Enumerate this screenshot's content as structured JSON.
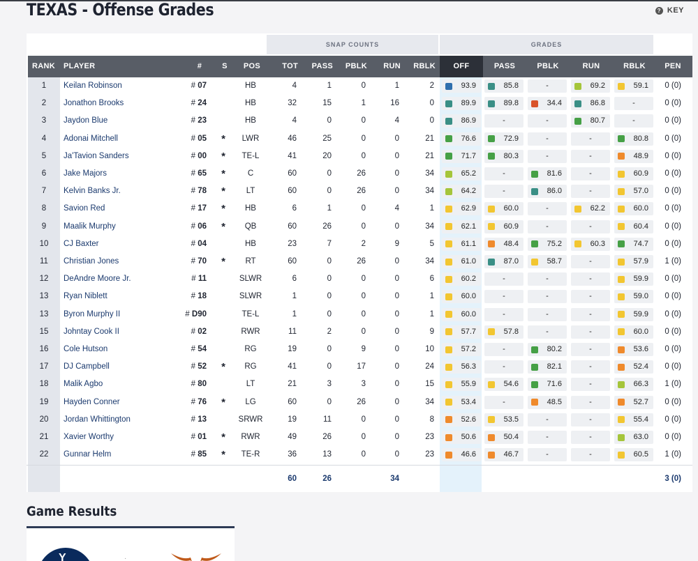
{
  "page": {
    "title": "TEXAS - Offense Grades",
    "key_label": "KEY",
    "key_icon": "question-circle-icon"
  },
  "groups": {
    "snap_counts": "SNAP COUNTS",
    "grades": "GRADES"
  },
  "headers": {
    "rank": "RANK",
    "player": "PLAYER",
    "num": "#",
    "s": "S",
    "pos": "POS",
    "tot": "TOT",
    "pass": "PASS",
    "pblk": "PBLK",
    "run": "RUN",
    "rblk": "RBLK",
    "off": "OFF",
    "g_pass": "PASS",
    "g_pblk": "PBLK",
    "g_run": "RUN",
    "g_rblk": "RBLK",
    "pen": "PEN"
  },
  "grade_colors": {
    "blue": "#2f6fad",
    "teal": "#3a8f86",
    "green": "#46a046",
    "lime": "#a5c53a",
    "yellow": "#f2c631",
    "orange": "#ef8a2c",
    "red": "#d9532a"
  },
  "rows": [
    {
      "rank": "1",
      "player": "Keilan Robinson",
      "num": "07",
      "s": "",
      "pos": "HB",
      "tot": "4",
      "pass": "1",
      "pblk": "0",
      "run": "1",
      "rblk": "2",
      "off": "93.9",
      "off_c": "blue",
      "gpass": "85.8",
      "gpass_c": "teal",
      "gpblk": "-",
      "gpblk_c": "",
      "grun": "69.2",
      "grun_c": "lime",
      "grblk": "59.1",
      "grblk_c": "yellow",
      "pen": "0 (0)"
    },
    {
      "rank": "2",
      "player": "Jonathon Brooks",
      "num": "24",
      "s": "",
      "pos": "HB",
      "tot": "32",
      "pass": "15",
      "pblk": "1",
      "run": "16",
      "rblk": "0",
      "off": "89.9",
      "off_c": "teal",
      "gpass": "89.8",
      "gpass_c": "teal",
      "gpblk": "34.4",
      "gpblk_c": "red",
      "grun": "86.8",
      "grun_c": "teal",
      "grblk": "-",
      "grblk_c": "",
      "pen": "0 (0)"
    },
    {
      "rank": "3",
      "player": "Jaydon Blue",
      "num": "23",
      "s": "",
      "pos": "HB",
      "tot": "4",
      "pass": "0",
      "pblk": "0",
      "run": "4",
      "rblk": "0",
      "off": "86.9",
      "off_c": "teal",
      "gpass": "-",
      "gpass_c": "",
      "gpblk": "-",
      "gpblk_c": "",
      "grun": "80.7",
      "grun_c": "green",
      "grblk": "-",
      "grblk_c": "",
      "pen": "0 (0)"
    },
    {
      "rank": "4",
      "player": "Adonai Mitchell",
      "num": "05",
      "s": "*",
      "pos": "LWR",
      "tot": "46",
      "pass": "25",
      "pblk": "0",
      "run": "0",
      "rblk": "21",
      "off": "76.6",
      "off_c": "green",
      "gpass": "72.9",
      "gpass_c": "green",
      "gpblk": "-",
      "gpblk_c": "",
      "grun": "-",
      "grun_c": "",
      "grblk": "80.8",
      "grblk_c": "green",
      "pen": "0 (0)"
    },
    {
      "rank": "5",
      "player": "Ja'Tavion Sanders",
      "num": "00",
      "s": "*",
      "pos": "TE-L",
      "tot": "41",
      "pass": "20",
      "pblk": "0",
      "run": "0",
      "rblk": "21",
      "off": "71.7",
      "off_c": "green",
      "gpass": "80.3",
      "gpass_c": "green",
      "gpblk": "-",
      "gpblk_c": "",
      "grun": "-",
      "grun_c": "",
      "grblk": "48.9",
      "grblk_c": "orange",
      "pen": "0 (0)"
    },
    {
      "rank": "6",
      "player": "Jake Majors",
      "num": "65",
      "s": "*",
      "pos": "C",
      "tot": "60",
      "pass": "0",
      "pblk": "26",
      "run": "0",
      "rblk": "34",
      "off": "65.2",
      "off_c": "lime",
      "gpass": "-",
      "gpass_c": "",
      "gpblk": "81.6",
      "gpblk_c": "green",
      "grun": "-",
      "grun_c": "",
      "grblk": "60.9",
      "grblk_c": "yellow",
      "pen": "0 (0)"
    },
    {
      "rank": "7",
      "player": "Kelvin Banks Jr.",
      "num": "78",
      "s": "*",
      "pos": "LT",
      "tot": "60",
      "pass": "0",
      "pblk": "26",
      "run": "0",
      "rblk": "34",
      "off": "64.2",
      "off_c": "lime",
      "gpass": "-",
      "gpass_c": "",
      "gpblk": "86.0",
      "gpblk_c": "teal",
      "grun": "-",
      "grun_c": "",
      "grblk": "57.0",
      "grblk_c": "yellow",
      "pen": "0 (0)"
    },
    {
      "rank": "8",
      "player": "Savion Red",
      "num": "17",
      "s": "*",
      "pos": "HB",
      "tot": "6",
      "pass": "1",
      "pblk": "0",
      "run": "4",
      "rblk": "1",
      "off": "62.9",
      "off_c": "yellow",
      "gpass": "60.0",
      "gpass_c": "yellow",
      "gpblk": "-",
      "gpblk_c": "",
      "grun": "62.2",
      "grun_c": "yellow",
      "grblk": "60.0",
      "grblk_c": "yellow",
      "pen": "0 (0)"
    },
    {
      "rank": "9",
      "player": "Maalik Murphy",
      "num": "06",
      "s": "*",
      "pos": "QB",
      "tot": "60",
      "pass": "26",
      "pblk": "0",
      "run": "0",
      "rblk": "34",
      "off": "62.1",
      "off_c": "yellow",
      "gpass": "60.9",
      "gpass_c": "yellow",
      "gpblk": "-",
      "gpblk_c": "",
      "grun": "-",
      "grun_c": "",
      "grblk": "60.4",
      "grblk_c": "yellow",
      "pen": "0 (0)"
    },
    {
      "rank": "10",
      "player": "CJ Baxter",
      "num": "04",
      "s": "",
      "pos": "HB",
      "tot": "23",
      "pass": "7",
      "pblk": "2",
      "run": "9",
      "rblk": "5",
      "off": "61.1",
      "off_c": "yellow",
      "gpass": "48.4",
      "gpass_c": "orange",
      "gpblk": "75.2",
      "gpblk_c": "green",
      "grun": "60.3",
      "grun_c": "yellow",
      "grblk": "74.7",
      "grblk_c": "green",
      "pen": "0 (0)"
    },
    {
      "rank": "11",
      "player": "Christian Jones",
      "num": "70",
      "s": "*",
      "pos": "RT",
      "tot": "60",
      "pass": "0",
      "pblk": "26",
      "run": "0",
      "rblk": "34",
      "off": "61.0",
      "off_c": "yellow",
      "gpass": "87.0",
      "gpass_c": "teal",
      "gpblk": "58.7",
      "gpblk_c": "yellow",
      "grun": "-",
      "grun_c": "",
      "grblk": "57.9",
      "grblk_c": "yellow",
      "pen": "1 (0)"
    },
    {
      "rank": "12",
      "player": "DeAndre Moore Jr.",
      "num": "11",
      "s": "",
      "pos": "SLWR",
      "tot": "6",
      "pass": "0",
      "pblk": "0",
      "run": "0",
      "rblk": "6",
      "off": "60.2",
      "off_c": "yellow",
      "gpass": "-",
      "gpass_c": "",
      "gpblk": "-",
      "gpblk_c": "",
      "grun": "-",
      "grun_c": "",
      "grblk": "59.9",
      "grblk_c": "yellow",
      "pen": "0 (0)"
    },
    {
      "rank": "13",
      "player": "Ryan Niblett",
      "num": "18",
      "s": "",
      "pos": "SLWR",
      "tot": "1",
      "pass": "0",
      "pblk": "0",
      "run": "0",
      "rblk": "1",
      "off": "60.0",
      "off_c": "yellow",
      "gpass": "-",
      "gpass_c": "",
      "gpblk": "-",
      "gpblk_c": "",
      "grun": "-",
      "grun_c": "",
      "grblk": "59.0",
      "grblk_c": "yellow",
      "pen": "0 (0)"
    },
    {
      "rank": "13",
      "player": "Byron Murphy II",
      "num": "D90",
      "s": "",
      "pos": "TE-L",
      "tot": "1",
      "pass": "0",
      "pblk": "0",
      "run": "0",
      "rblk": "1",
      "off": "60.0",
      "off_c": "yellow",
      "gpass": "-",
      "gpass_c": "",
      "gpblk": "-",
      "gpblk_c": "",
      "grun": "-",
      "grun_c": "",
      "grblk": "59.9",
      "grblk_c": "yellow",
      "pen": "0 (0)"
    },
    {
      "rank": "15",
      "player": "Johntay Cook II",
      "num": "02",
      "s": "",
      "pos": "RWR",
      "tot": "11",
      "pass": "2",
      "pblk": "0",
      "run": "0",
      "rblk": "9",
      "off": "57.7",
      "off_c": "yellow",
      "gpass": "57.8",
      "gpass_c": "yellow",
      "gpblk": "-",
      "gpblk_c": "",
      "grun": "-",
      "grun_c": "",
      "grblk": "60.0",
      "grblk_c": "yellow",
      "pen": "0 (0)"
    },
    {
      "rank": "16",
      "player": "Cole Hutson",
      "num": "54",
      "s": "",
      "pos": "RG",
      "tot": "19",
      "pass": "0",
      "pblk": "9",
      "run": "0",
      "rblk": "10",
      "off": "57.2",
      "off_c": "yellow",
      "gpass": "-",
      "gpass_c": "",
      "gpblk": "80.2",
      "gpblk_c": "green",
      "grun": "-",
      "grun_c": "",
      "grblk": "53.6",
      "grblk_c": "orange",
      "pen": "0 (0)"
    },
    {
      "rank": "17",
      "player": "DJ Campbell",
      "num": "52",
      "s": "*",
      "pos": "RG",
      "tot": "41",
      "pass": "0",
      "pblk": "17",
      "run": "0",
      "rblk": "24",
      "off": "56.3",
      "off_c": "yellow",
      "gpass": "-",
      "gpass_c": "",
      "gpblk": "82.1",
      "gpblk_c": "green",
      "grun": "-",
      "grun_c": "",
      "grblk": "52.4",
      "grblk_c": "orange",
      "pen": "0 (0)"
    },
    {
      "rank": "18",
      "player": "Malik Agbo",
      "num": "80",
      "s": "",
      "pos": "LT",
      "tot": "21",
      "pass": "3",
      "pblk": "3",
      "run": "0",
      "rblk": "15",
      "off": "55.9",
      "off_c": "yellow",
      "gpass": "54.6",
      "gpass_c": "yellow",
      "gpblk": "71.6",
      "gpblk_c": "green",
      "grun": "-",
      "grun_c": "",
      "grblk": "66.3",
      "grblk_c": "lime",
      "pen": "1 (0)"
    },
    {
      "rank": "19",
      "player": "Hayden Conner",
      "num": "76",
      "s": "*",
      "pos": "LG",
      "tot": "60",
      "pass": "0",
      "pblk": "26",
      "run": "0",
      "rblk": "34",
      "off": "53.4",
      "off_c": "yellow",
      "gpass": "-",
      "gpass_c": "",
      "gpblk": "48.5",
      "gpblk_c": "orange",
      "grun": "-",
      "grun_c": "",
      "grblk": "52.7",
      "grblk_c": "orange",
      "pen": "0 (0)"
    },
    {
      "rank": "20",
      "player": "Jordan Whittington",
      "num": "13",
      "s": "",
      "pos": "SRWR",
      "tot": "19",
      "pass": "11",
      "pblk": "0",
      "run": "0",
      "rblk": "8",
      "off": "52.6",
      "off_c": "orange",
      "gpass": "53.5",
      "gpass_c": "yellow",
      "gpblk": "-",
      "gpblk_c": "",
      "grun": "-",
      "grun_c": "",
      "grblk": "55.4",
      "grblk_c": "yellow",
      "pen": "0 (0)"
    },
    {
      "rank": "21",
      "player": "Xavier Worthy",
      "num": "01",
      "s": "*",
      "pos": "RWR",
      "tot": "49",
      "pass": "26",
      "pblk": "0",
      "run": "0",
      "rblk": "23",
      "off": "50.6",
      "off_c": "orange",
      "gpass": "50.4",
      "gpass_c": "orange",
      "gpblk": "-",
      "gpblk_c": "",
      "grun": "-",
      "grun_c": "",
      "grblk": "63.0",
      "grblk_c": "lime",
      "pen": "0 (0)"
    },
    {
      "rank": "22",
      "player": "Gunnar Helm",
      "num": "85",
      "s": "*",
      "pos": "TE-R",
      "tot": "36",
      "pass": "13",
      "pblk": "0",
      "run": "0",
      "rblk": "23",
      "off": "46.6",
      "off_c": "orange",
      "gpass": "46.7",
      "gpass_c": "orange",
      "gpblk": "-",
      "gpblk_c": "",
      "grun": "-",
      "grun_c": "",
      "grblk": "60.5",
      "grblk_c": "yellow",
      "pen": "1 (0)"
    }
  ],
  "totals": {
    "tot": "60",
    "pass": "26",
    "run": "34",
    "pen": "3 (0)"
  },
  "game_results": {
    "title": "Game Results"
  }
}
